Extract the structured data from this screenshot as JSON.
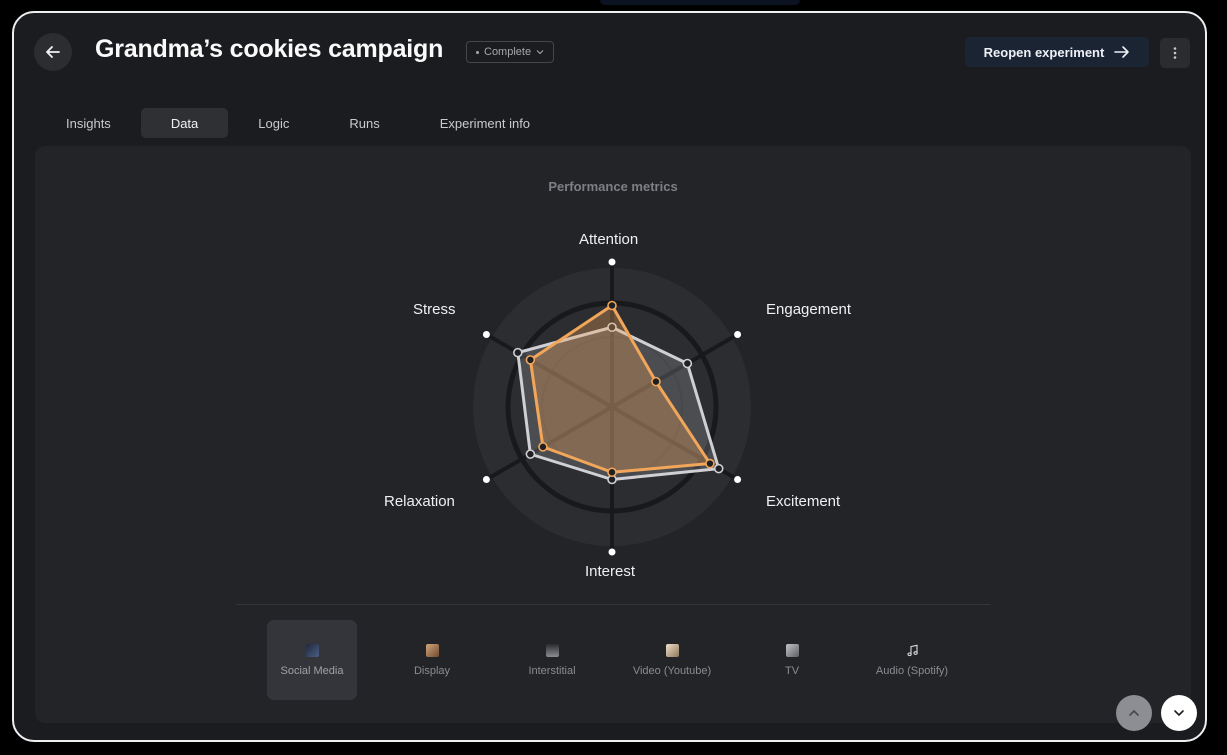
{
  "header": {
    "title": "Grandma’s cookies campaign",
    "status": "Complete",
    "reopen_label": "Reopen experiment"
  },
  "tabs": [
    {
      "label": "Insights",
      "active": false
    },
    {
      "label": "Data",
      "active": true
    },
    {
      "label": "Logic",
      "active": false
    },
    {
      "label": "Runs",
      "active": false
    },
    {
      "label": "Experiment info",
      "active": false
    }
  ],
  "panel": {
    "title": "Performance metrics"
  },
  "chart_data": {
    "type": "radar",
    "title": "Performance metrics",
    "axes": [
      "Attention",
      "Engagement",
      "Excitement",
      "Interest",
      "Relaxation",
      "Stress"
    ],
    "range": [
      0,
      1
    ],
    "series": [
      {
        "color": "#cfcfd4",
        "values": [
          0.55,
          0.6,
          0.85,
          0.5,
          0.65,
          0.75
        ]
      },
      {
        "color": "#f2a65a",
        "values": [
          0.7,
          0.35,
          0.78,
          0.45,
          0.55,
          0.65
        ]
      }
    ]
  },
  "channels": [
    {
      "label": "Social Media",
      "active": true,
      "icon": "social-media-thumbnail",
      "color": "#3a4a6a"
    },
    {
      "label": "Display",
      "active": false,
      "icon": "display-thumbnail",
      "color": "#b98a62"
    },
    {
      "label": "Interstitial",
      "active": false,
      "icon": "interstitial-thumbnail",
      "color": "#6f7277"
    },
    {
      "label": "Video (Youtube)",
      "active": false,
      "icon": "video-thumbnail",
      "color": "#c7b497"
    },
    {
      "label": "TV",
      "active": false,
      "icon": "tv-thumbnail",
      "color": "#9b9ea4"
    },
    {
      "label": "Audio (Spotify)",
      "active": false,
      "icon": "music-note-icon",
      "color": "#d8d8dc"
    }
  ],
  "colors": {
    "accent_orange": "#f2a65a",
    "series_grey": "#cfcfd4",
    "panel_bg": "#232427"
  }
}
